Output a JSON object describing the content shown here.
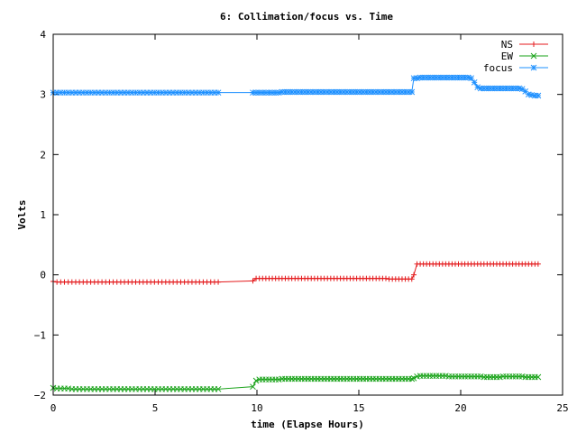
{
  "chart_data": {
    "type": "line",
    "title": "6: Collimation/focus vs. Time",
    "xlabel": "time (Elapse Hours)",
    "ylabel": "Volts",
    "xlim": [
      0,
      25
    ],
    "ylim": [
      -2,
      4
    ],
    "x_ticks": [
      "0",
      "5",
      "10",
      "15",
      "20",
      "25"
    ],
    "y_ticks": [
      "−2",
      "−1",
      "0",
      "1",
      "2",
      "3",
      "4"
    ],
    "grid": false,
    "legend_position": "top-right",
    "series": [
      {
        "name": "NS",
        "color": "#e41a1c",
        "marker": "plus",
        "segments": [
          {
            "x_start": 0.0,
            "x_end": 8.1,
            "y": [
              -0.11,
              -0.12,
              -0.12,
              -0.12,
              -0.12,
              -0.12,
              -0.12,
              -0.12,
              -0.12,
              -0.12,
              -0.12,
              -0.12,
              -0.12,
              -0.12,
              -0.12,
              -0.12,
              -0.12,
              -0.12,
              -0.12,
              -0.12,
              -0.12,
              -0.12,
              -0.12,
              -0.12,
              -0.12,
              -0.12,
              -0.12,
              -0.12,
              -0.12,
              -0.12,
              -0.12,
              -0.12,
              -0.12,
              -0.12,
              -0.12,
              -0.12,
              -0.12,
              -0.12,
              -0.12,
              -0.12,
              -0.12,
              -0.12,
              -0.12,
              -0.12,
              -0.12
            ]
          },
          {
            "x_start": 9.8,
            "x_end": 17.6,
            "y": [
              -0.1,
              -0.06,
              -0.06,
              -0.06,
              -0.06,
              -0.06,
              -0.06,
              -0.06,
              -0.06,
              -0.06,
              -0.06,
              -0.06,
              -0.06,
              -0.06,
              -0.06,
              -0.06,
              -0.06,
              -0.06,
              -0.06,
              -0.06,
              -0.06,
              -0.06,
              -0.06,
              -0.06,
              -0.06,
              -0.06,
              -0.06,
              -0.06,
              -0.06,
              -0.06,
              -0.06,
              -0.06,
              -0.06,
              -0.06,
              -0.06,
              -0.06,
              -0.06,
              -0.06,
              -0.06,
              -0.06,
              -0.06,
              -0.06,
              -0.07,
              -0.07,
              -0.07,
              -0.07,
              -0.07,
              -0.07,
              -0.07,
              -0.07
            ]
          },
          {
            "x_start": 17.7,
            "x_end": 23.8,
            "y": [
              0.0,
              0.18,
              0.18,
              0.18,
              0.18,
              0.18,
              0.18,
              0.18,
              0.18,
              0.18,
              0.18,
              0.18,
              0.18,
              0.18,
              0.18,
              0.18,
              0.18,
              0.18,
              0.18,
              0.18,
              0.18,
              0.18,
              0.18,
              0.18,
              0.18,
              0.18,
              0.18,
              0.18,
              0.18,
              0.18,
              0.18,
              0.18,
              0.18,
              0.18,
              0.18,
              0.18,
              0.18,
              0.18,
              0.18,
              0.18
            ]
          }
        ]
      },
      {
        "name": "EW",
        "color": "#1aa31a",
        "marker": "cross",
        "segments": [
          {
            "x_start": 0.0,
            "x_end": 8.1,
            "y": [
              -1.88,
              -1.89,
              -1.89,
              -1.89,
              -1.89,
              -1.9,
              -1.9,
              -1.9,
              -1.9,
              -1.9,
              -1.9,
              -1.9,
              -1.9,
              -1.9,
              -1.9,
              -1.9,
              -1.9,
              -1.9,
              -1.9,
              -1.9,
              -1.9,
              -1.9,
              -1.9,
              -1.9,
              -1.9,
              -1.9,
              -1.9,
              -1.9,
              -1.9,
              -1.9,
              -1.9,
              -1.9,
              -1.9,
              -1.9,
              -1.9,
              -1.9,
              -1.9,
              -1.9,
              -1.9,
              -1.9,
              -1.9,
              -1.9,
              -1.9,
              -1.9,
              -1.9
            ]
          },
          {
            "x_start": 9.8,
            "x_end": 17.6,
            "y": [
              -1.86,
              -1.76,
              -1.74,
              -1.74,
              -1.74,
              -1.74,
              -1.74,
              -1.74,
              -1.74,
              -1.73,
              -1.73,
              -1.73,
              -1.73,
              -1.73,
              -1.73,
              -1.73,
              -1.73,
              -1.73,
              -1.73,
              -1.73,
              -1.73,
              -1.73,
              -1.73,
              -1.73,
              -1.73,
              -1.73,
              -1.73,
              -1.73,
              -1.73,
              -1.73,
              -1.73,
              -1.73,
              -1.73,
              -1.73,
              -1.73,
              -1.73,
              -1.73,
              -1.73,
              -1.73,
              -1.73,
              -1.73,
              -1.73,
              -1.73,
              -1.73,
              -1.73,
              -1.73,
              -1.73,
              -1.73,
              -1.73,
              -1.73
            ]
          },
          {
            "x_start": 17.7,
            "x_end": 23.8,
            "y": [
              -1.72,
              -1.69,
              -1.68,
              -1.68,
              -1.68,
              -1.68,
              -1.68,
              -1.68,
              -1.68,
              -1.68,
              -1.68,
              -1.69,
              -1.69,
              -1.69,
              -1.69,
              -1.69,
              -1.69,
              -1.69,
              -1.69,
              -1.69,
              -1.69,
              -1.69,
              -1.7,
              -1.7,
              -1.7,
              -1.7,
              -1.7,
              -1.7,
              -1.69,
              -1.69,
              -1.69,
              -1.69,
              -1.69,
              -1.69,
              -1.69,
              -1.7,
              -1.7,
              -1.7,
              -1.7,
              -1.7
            ]
          }
        ]
      },
      {
        "name": "focus",
        "color": "#1e90ff",
        "marker": "star",
        "segments": [
          {
            "x_start": 0.0,
            "x_end": 8.1,
            "y": [
              3.03,
              3.03,
              3.03,
              3.03,
              3.03,
              3.03,
              3.03,
              3.03,
              3.03,
              3.03,
              3.03,
              3.03,
              3.03,
              3.03,
              3.03,
              3.03,
              3.03,
              3.03,
              3.03,
              3.03,
              3.03,
              3.03,
              3.03,
              3.03,
              3.03,
              3.03,
              3.03,
              3.03,
              3.03,
              3.03,
              3.03,
              3.03,
              3.03,
              3.03,
              3.03,
              3.03,
              3.03,
              3.03,
              3.03,
              3.03,
              3.03,
              3.03,
              3.03,
              3.03,
              3.03
            ]
          },
          {
            "x_start": 9.8,
            "x_end": 17.6,
            "y": [
              3.03,
              3.03,
              3.03,
              3.03,
              3.03,
              3.03,
              3.03,
              3.03,
              3.03,
              3.04,
              3.04,
              3.04,
              3.04,
              3.04,
              3.04,
              3.04,
              3.04,
              3.04,
              3.04,
              3.04,
              3.04,
              3.04,
              3.04,
              3.04,
              3.04,
              3.04,
              3.04,
              3.04,
              3.04,
              3.04,
              3.04,
              3.04,
              3.04,
              3.04,
              3.04,
              3.04,
              3.04,
              3.04,
              3.04,
              3.04,
              3.04,
              3.04,
              3.04,
              3.04,
              3.04,
              3.04,
              3.04,
              3.04,
              3.04,
              3.04
            ]
          },
          {
            "x_start": 17.7,
            "x_end": 23.8,
            "y": [
              3.27,
              3.27,
              3.28,
              3.28,
              3.28,
              3.28,
              3.28,
              3.28,
              3.28,
              3.28,
              3.28,
              3.28,
              3.28,
              3.28,
              3.28,
              3.28,
              3.28,
              3.28,
              3.27,
              3.2,
              3.12,
              3.1,
              3.1,
              3.1,
              3.1,
              3.1,
              3.1,
              3.1,
              3.1,
              3.1,
              3.1,
              3.1,
              3.1,
              3.1,
              3.09,
              3.05,
              3.0,
              2.99,
              2.98,
              2.98
            ]
          }
        ]
      }
    ]
  }
}
